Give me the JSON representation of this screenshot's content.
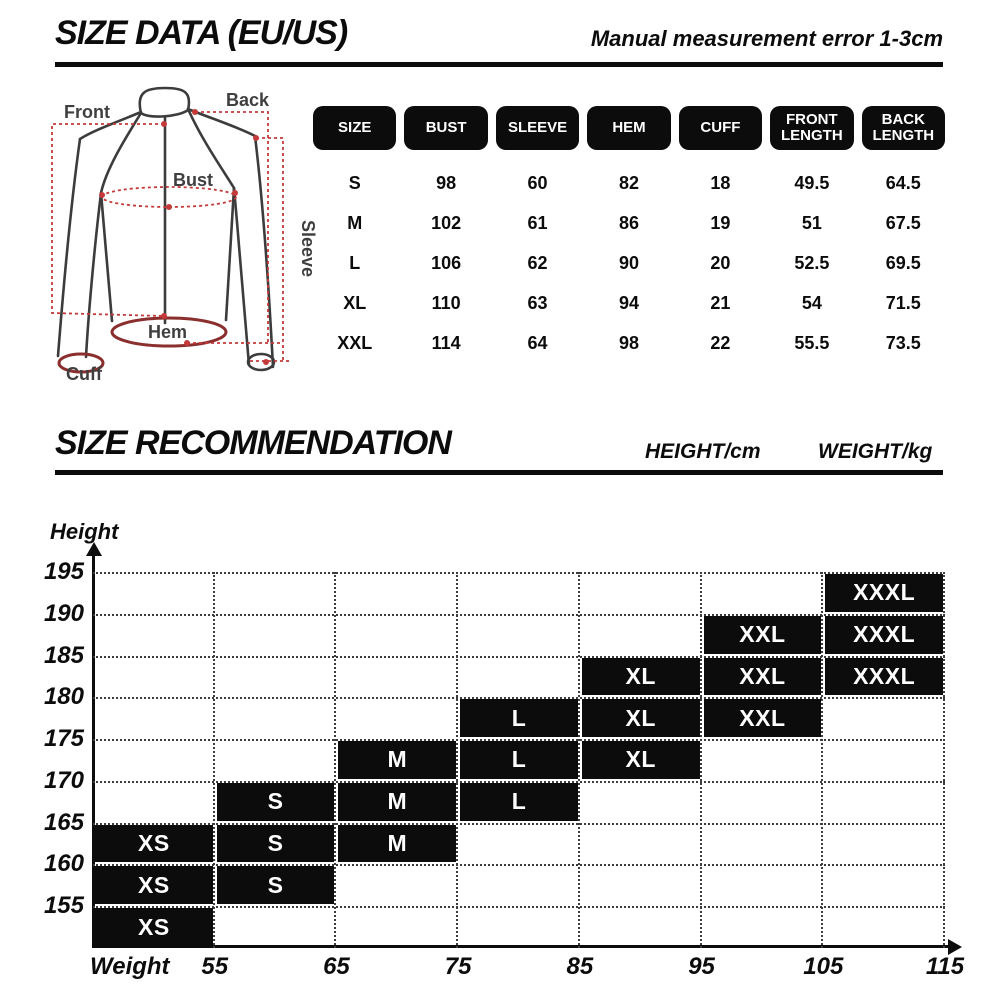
{
  "size_data_section": {
    "title": "SIZE DATA (EU/US)",
    "note": "Manual measurement error 1-3cm",
    "diagram_labels": {
      "front": "Front",
      "back": "Back",
      "bust": "Bust",
      "sleeve": "Sleeve",
      "hem": "Hem",
      "cuff": "Cuff"
    }
  },
  "recommendation_section": {
    "title": "SIZE RECOMMENDATION",
    "height_unit": "HEIGHT/cm",
    "weight_unit": "WEIGHT/kg",
    "y_axis_label": "Height",
    "x_axis_label": "Weight"
  },
  "chart_data": [
    {
      "type": "table",
      "title": "SIZE DATA (EU/US)",
      "columns": [
        "SIZE",
        "BUST",
        "SLEEVE",
        "HEM",
        "CUFF",
        "FRONT LENGTH",
        "BACK LENGTH"
      ],
      "rows": [
        [
          "S",
          "98",
          "60",
          "82",
          "18",
          "49.5",
          "64.5"
        ],
        [
          "M",
          "102",
          "61",
          "86",
          "19",
          "51",
          "67.5"
        ],
        [
          "L",
          "106",
          "62",
          "90",
          "20",
          "52.5",
          "69.5"
        ],
        [
          "XL",
          "110",
          "63",
          "94",
          "21",
          "54",
          "71.5"
        ],
        [
          "XXL",
          "114",
          "64",
          "98",
          "22",
          "55.5",
          "73.5"
        ]
      ]
    },
    {
      "type": "heatmap",
      "title": "SIZE RECOMMENDATION",
      "xlabel": "Weight",
      "ylabel": "Height",
      "x_unit": "kg",
      "y_unit": "cm",
      "x_ticks": [
        55,
        65,
        75,
        85,
        95,
        105,
        115
      ],
      "y_ticks": [
        195,
        190,
        185,
        180,
        175,
        170,
        165,
        160,
        155
      ],
      "x_range": [
        45,
        115
      ],
      "y_range": [
        150,
        195
      ],
      "grid": "dotted",
      "legend_position": "none",
      "recommendations": [
        {
          "size": "XS",
          "weight": [
            45,
            55
          ],
          "height": [
            150,
            165
          ]
        },
        {
          "size": "S",
          "weight": [
            55,
            65
          ],
          "height": [
            155,
            170
          ]
        },
        {
          "size": "M",
          "weight": [
            65,
            75
          ],
          "height": [
            160,
            175
          ]
        },
        {
          "size": "L",
          "weight": [
            75,
            85
          ],
          "height": [
            165,
            180
          ]
        },
        {
          "size": "XL",
          "weight": [
            85,
            95
          ],
          "height": [
            170,
            185
          ]
        },
        {
          "size": "XXL",
          "weight": [
            95,
            105
          ],
          "height": [
            175,
            190
          ]
        },
        {
          "size": "XXXL",
          "weight": [
            105,
            115
          ],
          "height": [
            180,
            195
          ]
        }
      ]
    }
  ],
  "colors": {
    "cell_black": "#0c0c0c",
    "measure_red": "#c43a3a",
    "hem_maroon": "#8a2e2e",
    "outline_gray": "#3c3c3c"
  }
}
